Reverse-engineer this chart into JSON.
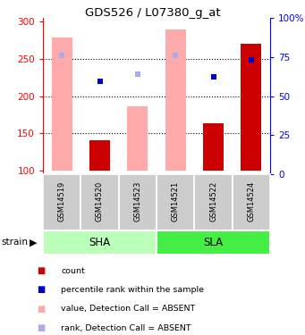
{
  "title": "GDS526 / L07380_g_at",
  "samples": [
    "GSM14519",
    "GSM14520",
    "GSM14523",
    "GSM14521",
    "GSM14522",
    "GSM14524"
  ],
  "ylim_left": [
    95,
    305
  ],
  "ylim_right": [
    0,
    100
  ],
  "yticks_left": [
    100,
    150,
    200,
    250,
    300
  ],
  "yticks_right": [
    0,
    25,
    50,
    75,
    100
  ],
  "ytick_labels_right": [
    "0",
    "25",
    "50",
    "75",
    "100%"
  ],
  "grid_lines": [
    150,
    200,
    250
  ],
  "value_bars": [
    278,
    null,
    186,
    289,
    null,
    null
  ],
  "count_bars": [
    null,
    141,
    null,
    null,
    163,
    270
  ],
  "rank_absent": [
    255,
    null,
    230,
    255,
    null,
    null
  ],
  "rank_present": [
    null,
    220,
    null,
    null,
    226,
    249
  ],
  "count_color": "#cc0000",
  "rank_present_color": "#0000cc",
  "bar_absent_color": "#ffaaaa",
  "rank_absent_color": "#aaaaee",
  "sha_color": "#bbffbb",
  "sla_color": "#44ee44",
  "sample_box_color": "#cccccc",
  "bar_width": 0.55,
  "marker_size": 5,
  "groups": [
    {
      "label": "SHA",
      "start": 0,
      "end": 2
    },
    {
      "label": "SLA",
      "start": 3,
      "end": 5
    }
  ],
  "legend_items": [
    {
      "color": "#cc0000",
      "label": "count"
    },
    {
      "color": "#0000cc",
      "label": "percentile rank within the sample"
    },
    {
      "color": "#ffaaaa",
      "label": "value, Detection Call = ABSENT"
    },
    {
      "color": "#aaaaee",
      "label": "rank, Detection Call = ABSENT"
    }
  ]
}
